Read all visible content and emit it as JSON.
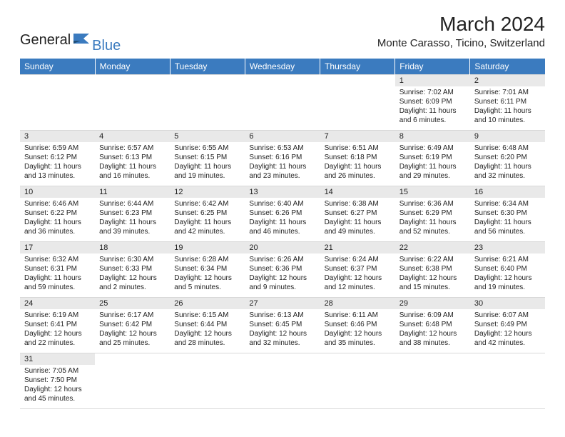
{
  "logo": {
    "text1": "General",
    "text2": "Blue"
  },
  "colors": {
    "header_bg": "#3b7bbf",
    "header_text": "#ffffff",
    "day_number_bg": "#e9e9e9",
    "border": "#d8d8d8",
    "text": "#222222"
  },
  "title": "March 2024",
  "location": "Monte Carasso, Ticino, Switzerland",
  "daysOfWeek": [
    "Sunday",
    "Monday",
    "Tuesday",
    "Wednesday",
    "Thursday",
    "Friday",
    "Saturday"
  ],
  "startWeekdayIndex": 5,
  "days": [
    {
      "n": 1,
      "sunrise": "7:02 AM",
      "sunset": "6:09 PM",
      "daylight": "11 hours and 6 minutes."
    },
    {
      "n": 2,
      "sunrise": "7:01 AM",
      "sunset": "6:11 PM",
      "daylight": "11 hours and 10 minutes."
    },
    {
      "n": 3,
      "sunrise": "6:59 AM",
      "sunset": "6:12 PM",
      "daylight": "11 hours and 13 minutes."
    },
    {
      "n": 4,
      "sunrise": "6:57 AM",
      "sunset": "6:13 PM",
      "daylight": "11 hours and 16 minutes."
    },
    {
      "n": 5,
      "sunrise": "6:55 AM",
      "sunset": "6:15 PM",
      "daylight": "11 hours and 19 minutes."
    },
    {
      "n": 6,
      "sunrise": "6:53 AM",
      "sunset": "6:16 PM",
      "daylight": "11 hours and 23 minutes."
    },
    {
      "n": 7,
      "sunrise": "6:51 AM",
      "sunset": "6:18 PM",
      "daylight": "11 hours and 26 minutes."
    },
    {
      "n": 8,
      "sunrise": "6:49 AM",
      "sunset": "6:19 PM",
      "daylight": "11 hours and 29 minutes."
    },
    {
      "n": 9,
      "sunrise": "6:48 AM",
      "sunset": "6:20 PM",
      "daylight": "11 hours and 32 minutes."
    },
    {
      "n": 10,
      "sunrise": "6:46 AM",
      "sunset": "6:22 PM",
      "daylight": "11 hours and 36 minutes."
    },
    {
      "n": 11,
      "sunrise": "6:44 AM",
      "sunset": "6:23 PM",
      "daylight": "11 hours and 39 minutes."
    },
    {
      "n": 12,
      "sunrise": "6:42 AM",
      "sunset": "6:25 PM",
      "daylight": "11 hours and 42 minutes."
    },
    {
      "n": 13,
      "sunrise": "6:40 AM",
      "sunset": "6:26 PM",
      "daylight": "11 hours and 46 minutes."
    },
    {
      "n": 14,
      "sunrise": "6:38 AM",
      "sunset": "6:27 PM",
      "daylight": "11 hours and 49 minutes."
    },
    {
      "n": 15,
      "sunrise": "6:36 AM",
      "sunset": "6:29 PM",
      "daylight": "11 hours and 52 minutes."
    },
    {
      "n": 16,
      "sunrise": "6:34 AM",
      "sunset": "6:30 PM",
      "daylight": "11 hours and 56 minutes."
    },
    {
      "n": 17,
      "sunrise": "6:32 AM",
      "sunset": "6:31 PM",
      "daylight": "11 hours and 59 minutes."
    },
    {
      "n": 18,
      "sunrise": "6:30 AM",
      "sunset": "6:33 PM",
      "daylight": "12 hours and 2 minutes."
    },
    {
      "n": 19,
      "sunrise": "6:28 AM",
      "sunset": "6:34 PM",
      "daylight": "12 hours and 5 minutes."
    },
    {
      "n": 20,
      "sunrise": "6:26 AM",
      "sunset": "6:36 PM",
      "daylight": "12 hours and 9 minutes."
    },
    {
      "n": 21,
      "sunrise": "6:24 AM",
      "sunset": "6:37 PM",
      "daylight": "12 hours and 12 minutes."
    },
    {
      "n": 22,
      "sunrise": "6:22 AM",
      "sunset": "6:38 PM",
      "daylight": "12 hours and 15 minutes."
    },
    {
      "n": 23,
      "sunrise": "6:21 AM",
      "sunset": "6:40 PM",
      "daylight": "12 hours and 19 minutes."
    },
    {
      "n": 24,
      "sunrise": "6:19 AM",
      "sunset": "6:41 PM",
      "daylight": "12 hours and 22 minutes."
    },
    {
      "n": 25,
      "sunrise": "6:17 AM",
      "sunset": "6:42 PM",
      "daylight": "12 hours and 25 minutes."
    },
    {
      "n": 26,
      "sunrise": "6:15 AM",
      "sunset": "6:44 PM",
      "daylight": "12 hours and 28 minutes."
    },
    {
      "n": 27,
      "sunrise": "6:13 AM",
      "sunset": "6:45 PM",
      "daylight": "12 hours and 32 minutes."
    },
    {
      "n": 28,
      "sunrise": "6:11 AM",
      "sunset": "6:46 PM",
      "daylight": "12 hours and 35 minutes."
    },
    {
      "n": 29,
      "sunrise": "6:09 AM",
      "sunset": "6:48 PM",
      "daylight": "12 hours and 38 minutes."
    },
    {
      "n": 30,
      "sunrise": "6:07 AM",
      "sunset": "6:49 PM",
      "daylight": "12 hours and 42 minutes."
    },
    {
      "n": 31,
      "sunrise": "7:05 AM",
      "sunset": "7:50 PM",
      "daylight": "12 hours and 45 minutes."
    }
  ],
  "labels": {
    "sunrise": "Sunrise:",
    "sunset": "Sunset:",
    "daylight": "Daylight:"
  }
}
